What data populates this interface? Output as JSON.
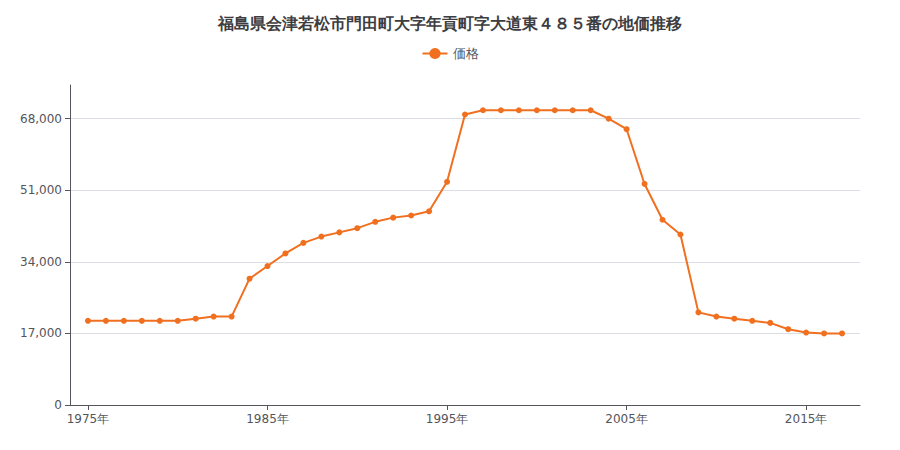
{
  "chart_data": {
    "type": "line",
    "title": "福島県会津若松市門田町大字年貢町字大道東４８５番の地価推移",
    "x": [
      1975,
      1976,
      1977,
      1978,
      1979,
      1980,
      1981,
      1982,
      1983,
      1984,
      1985,
      1986,
      1987,
      1988,
      1989,
      1990,
      1991,
      1992,
      1993,
      1994,
      1995,
      1996,
      1997,
      1998,
      1999,
      2000,
      2001,
      2002,
      2003,
      2004,
      2005,
      2006,
      2007,
      2008,
      2009,
      2010,
      2011,
      2012,
      2013,
      2014,
      2015,
      2016,
      2017
    ],
    "series": [
      {
        "name": "価格",
        "color": "#F07020",
        "marker": "circle",
        "values": [
          20000,
          20000,
          20000,
          20000,
          20000,
          20000,
          20500,
          21000,
          21000,
          30000,
          33000,
          36000,
          38500,
          40000,
          41000,
          42000,
          43500,
          44500,
          45000,
          46000,
          53000,
          69000,
          70000,
          70000,
          70000,
          70000,
          70000,
          70000,
          70000,
          68000,
          65500,
          52500,
          44000,
          40500,
          22000,
          21000,
          20500,
          20000,
          19500,
          18000,
          17200,
          17000,
          17000
        ]
      }
    ],
    "xlim": [
      1974,
      2018
    ],
    "xticks": [
      {
        "value": 1975,
        "label": "1975年"
      },
      {
        "value": 1985,
        "label": "1985年"
      },
      {
        "value": 1995,
        "label": "1995年"
      },
      {
        "value": 2005,
        "label": "2005年"
      },
      {
        "value": 2015,
        "label": "2015年"
      }
    ],
    "ylim": [
      0,
      76000
    ],
    "yticks": [
      0,
      {
        "value": 17000,
        "label": "17,000"
      },
      {
        "value": 34000,
        "label": "34,000"
      },
      {
        "value": 51000,
        "label": "51,000"
      },
      {
        "value": 68000,
        "label": "68,000"
      }
    ],
    "grid": "y",
    "legend": "top"
  }
}
